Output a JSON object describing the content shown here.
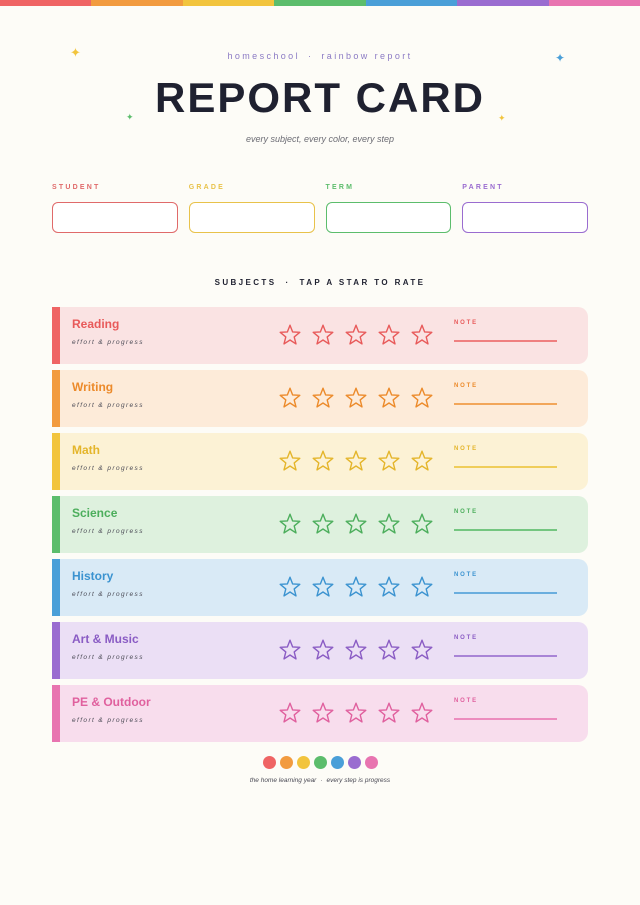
{
  "header": {
    "kicker_left": "homeschool",
    "kicker_sep": "·",
    "kicker_right": "rainbow report",
    "title": "REPORT CARD",
    "subtitle": "every subject, every color, every step"
  },
  "rainbow": [
    "#ef6464",
    "#f29b3f",
    "#f2c43d",
    "#5cbd6c",
    "#4a9fd8",
    "#9a6cd0",
    "#e874b0"
  ],
  "sparkles": [
    {
      "glyph": "✦",
      "color": "#f2c43d"
    },
    {
      "glyph": "✦",
      "color": "#4a9fd8"
    },
    {
      "glyph": "✦",
      "color": "#5cbd6c"
    },
    {
      "glyph": "✦",
      "color": "#f2c43d"
    }
  ],
  "fields": [
    {
      "label": "STUDENT",
      "value": "",
      "color": "#e06a6a"
    },
    {
      "label": "GRADE",
      "value": "",
      "color": "#e8c24a"
    },
    {
      "label": "TERM",
      "value": "",
      "color": "#5cbd6c"
    },
    {
      "label": "PARENT",
      "value": "",
      "color": "#9a6cd0"
    }
  ],
  "section": {
    "left": "SUBJECTS",
    "sep": "·",
    "right": "TAP A STAR TO RATE"
  },
  "subjects": [
    {
      "name": "Reading",
      "caption": "effort & progress",
      "note_label": "NOTE",
      "rating": 0,
      "color": "#e85a5a",
      "stripe": "#ef6464",
      "bg": "#fae3e3",
      "line": "#ef8080"
    },
    {
      "name": "Writing",
      "caption": "effort & progress",
      "note_label": "NOTE",
      "rating": 0,
      "color": "#ec8a2a",
      "stripe": "#f29b3f",
      "bg": "#fdebd9",
      "line": "#f2a65a"
    },
    {
      "name": "Math",
      "caption": "effort & progress",
      "note_label": "NOTE",
      "rating": 0,
      "color": "#e4b52a",
      "stripe": "#f2c43d",
      "bg": "#fcf2d5",
      "line": "#efcd5a"
    },
    {
      "name": "Science",
      "caption": "effort & progress",
      "note_label": "NOTE",
      "rating": 0,
      "color": "#4cae5c",
      "stripe": "#5cbd6c",
      "bg": "#def1de",
      "line": "#74c680"
    },
    {
      "name": "History",
      "caption": "effort & progress",
      "note_label": "NOTE",
      "rating": 0,
      "color": "#3b93d0",
      "stripe": "#4a9fd8",
      "bg": "#d9eaf6",
      "line": "#6aaede"
    },
    {
      "name": "Art & Music",
      "caption": "effort & progress",
      "note_label": "NOTE",
      "rating": 0,
      "color": "#8a5cc4",
      "stripe": "#9a6cd0",
      "bg": "#ebdff5",
      "line": "#a884d6"
    },
    {
      "name": "PE & Outdoor",
      "caption": "effort & progress",
      "note_label": "NOTE",
      "rating": 0,
      "color": "#e0609e",
      "stripe": "#e874b0",
      "bg": "#f8dded",
      "line": "#ec8cbe"
    }
  ],
  "footer": {
    "left": "the home learning year",
    "sep": "·",
    "right": "every step is progress"
  }
}
